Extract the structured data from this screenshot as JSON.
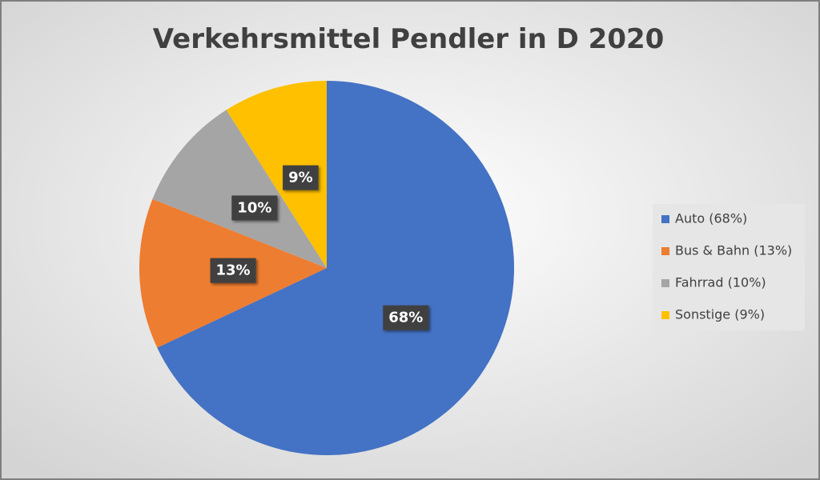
{
  "chart_data": {
    "type": "pie",
    "title": "Verkehrsmittel Pendler in D 2020",
    "categories": [
      "Auto (68%)",
      "Bus & Bahn (13%)",
      "Fahrrad (10%)",
      "Sonstige (9%)"
    ],
    "values": [
      68,
      13,
      10,
      9
    ],
    "value_labels": [
      "68%",
      "13%",
      "10%",
      "9%"
    ],
    "colors": [
      "#4472c4",
      "#ed7d31",
      "#a5a5a5",
      "#ffc000"
    ],
    "legend": "right"
  }
}
